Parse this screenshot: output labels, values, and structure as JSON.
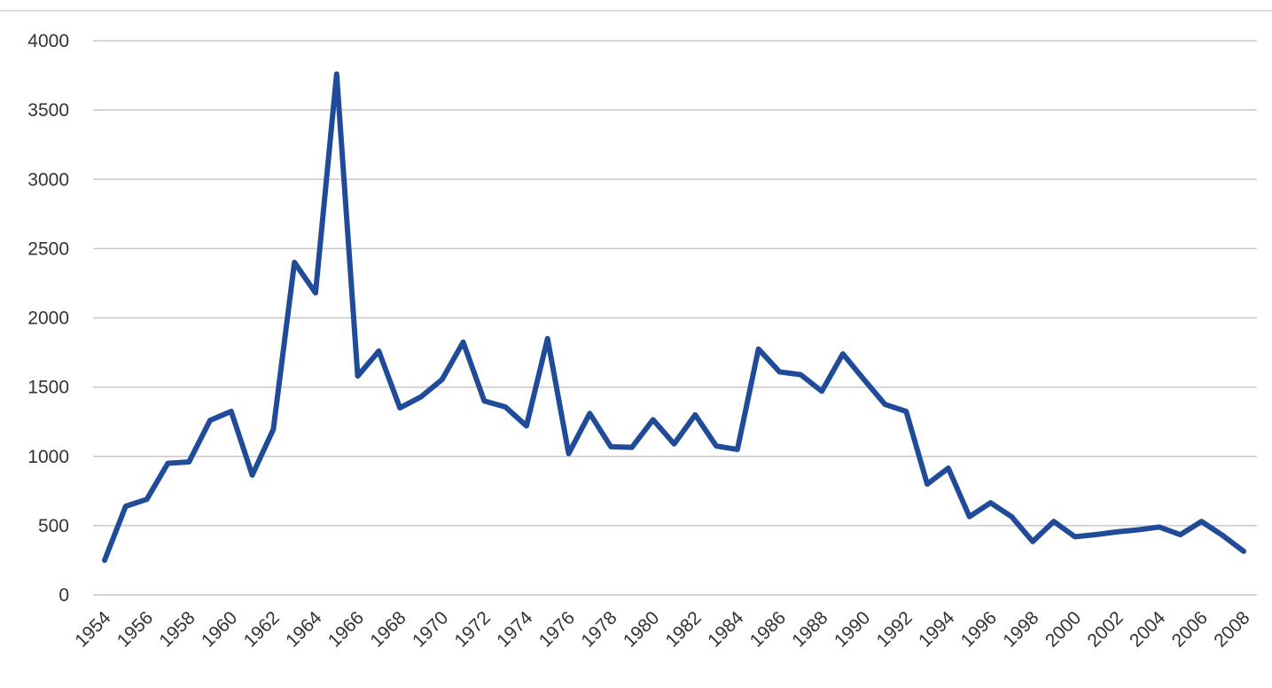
{
  "chart_data": {
    "type": "line",
    "x": [
      1954,
      1955,
      1956,
      1957,
      1958,
      1959,
      1960,
      1961,
      1962,
      1963,
      1964,
      1965,
      1966,
      1967,
      1968,
      1969,
      1970,
      1971,
      1972,
      1973,
      1974,
      1975,
      1976,
      1977,
      1978,
      1979,
      1980,
      1981,
      1982,
      1983,
      1984,
      1985,
      1986,
      1987,
      1988,
      1989,
      1990,
      1991,
      1992,
      1993,
      1994,
      1995,
      1996,
      1997,
      1998,
      1999,
      2000,
      2001,
      2002,
      2003,
      2004,
      2005,
      2006,
      2007,
      2008
    ],
    "series": [
      {
        "color": "#1f4b99",
        "values": [
          250,
          640,
          690,
          950,
          960,
          1260,
          1325,
          865,
          1195,
          2400,
          2180,
          3760,
          1580,
          1760,
          1350,
          1430,
          1555,
          1825,
          1400,
          1357,
          1220,
          1850,
          1020,
          1310,
          1070,
          1065,
          1265,
          1090,
          1300,
          1075,
          1050,
          1775,
          1610,
          1590,
          1470,
          1740,
          1555,
          1375,
          1325,
          800,
          915,
          565,
          665,
          565,
          385,
          530,
          420,
          435,
          455,
          470,
          490,
          435,
          530,
          430,
          315
        ]
      }
    ],
    "xlim": [
      1954,
      2008
    ],
    "xticks": [
      1954,
      1956,
      1958,
      1960,
      1962,
      1964,
      1966,
      1968,
      1970,
      1972,
      1974,
      1976,
      1978,
      1980,
      1982,
      1984,
      1986,
      1988,
      1990,
      1992,
      1994,
      1996,
      1998,
      2000,
      2002,
      2004,
      2006,
      2008
    ],
    "ylim": [
      0,
      4000
    ],
    "yticks": [
      0,
      500,
      1000,
      1500,
      2000,
      2500,
      3000,
      3500,
      4000
    ],
    "grid": true
  }
}
